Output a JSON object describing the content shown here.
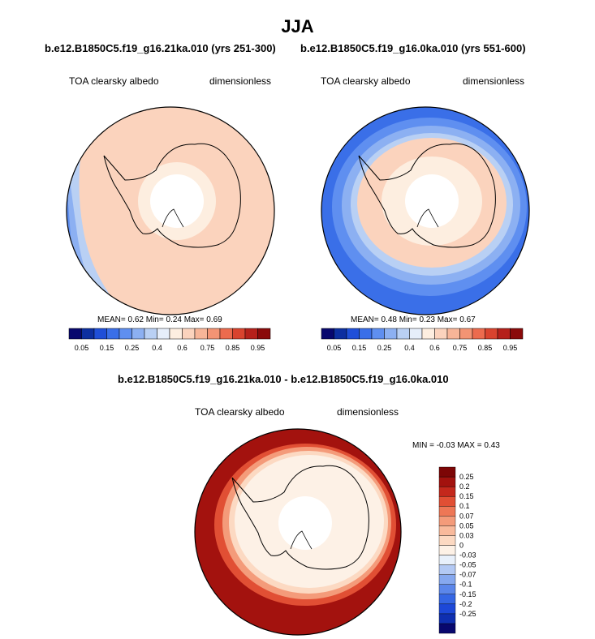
{
  "title": "JJA",
  "panels": [
    {
      "case": "b.e12.B1850C5.f19_g16.21ka.010 (yrs 251-300)",
      "variable": "TOA clearsky albedo",
      "units": "dimensionless",
      "stats": "MEAN=  0.62  Min=  0.24  Max=  0.69"
    },
    {
      "case": "b.e12.B1850C5.f19_g16.0ka.010 (yrs 551-600)",
      "variable": "TOA clearsky albedo",
      "units": "dimensionless",
      "stats": "MEAN=  0.48  Min=  0.23  Max=  0.67"
    }
  ],
  "diff": {
    "title": "b.e12.B1850C5.f19_g16.21ka.010 - b.e12.B1850C5.f19_g16.0ka.010",
    "variable": "TOA clearsky albedo",
    "units": "dimensionless",
    "minmax": "MIN =  -0.03 MAX =  0.43"
  },
  "colorbar_abs": {
    "colors": [
      "#08086e",
      "#0d2fa0",
      "#1f4fd8",
      "#3a6fe8",
      "#5f8ff0",
      "#8cb0f2",
      "#b9d0f4",
      "#e6eefa",
      "#fdeee0",
      "#fbd3bd",
      "#f7b598",
      "#f39474",
      "#ec6b4e",
      "#d9432e",
      "#b5201a",
      "#8a0a0a"
    ],
    "tick_labels": [
      "0.05",
      "0.15",
      "0.25",
      "0.4",
      "0.6",
      "0.75",
      "0.85",
      "0.95"
    ]
  },
  "colorbar_diff": {
    "colors": [
      "#08086e",
      "#0f2fb0",
      "#1d48d8",
      "#3566e4",
      "#5b86ea",
      "#86a8ef",
      "#b3c9f4",
      "#e8f0fb",
      "#fdf1e6",
      "#fcd9c2",
      "#f9ba9c",
      "#f49b7a",
      "#ee7756",
      "#e14f34",
      "#c4281c",
      "#a3120e",
      "#7d0606"
    ],
    "tick_labels": [
      "0.25",
      "0.2",
      "0.15",
      "0.1",
      "0.07",
      "0.05",
      "0.03",
      "0",
      "-0.03",
      "-0.05",
      "-0.07",
      "-0.1",
      "-0.15",
      "-0.2",
      "-0.25"
    ]
  },
  "map_colors": {
    "abs_main": "#fbd3bd",
    "abs_light": "#fdeee0",
    "abs_blue1": "#b9d0f4",
    "abs_blue2": "#8cb0f2",
    "abs_blue3": "#5f8ff0",
    "abs_blue4": "#3a6fe8",
    "diff_dark": "#a3120e",
    "diff_red": "#e14f34",
    "diff_orange": "#f49b7a",
    "diff_peach": "#fcd9c2",
    "diff_light": "#fdf1e6"
  }
}
